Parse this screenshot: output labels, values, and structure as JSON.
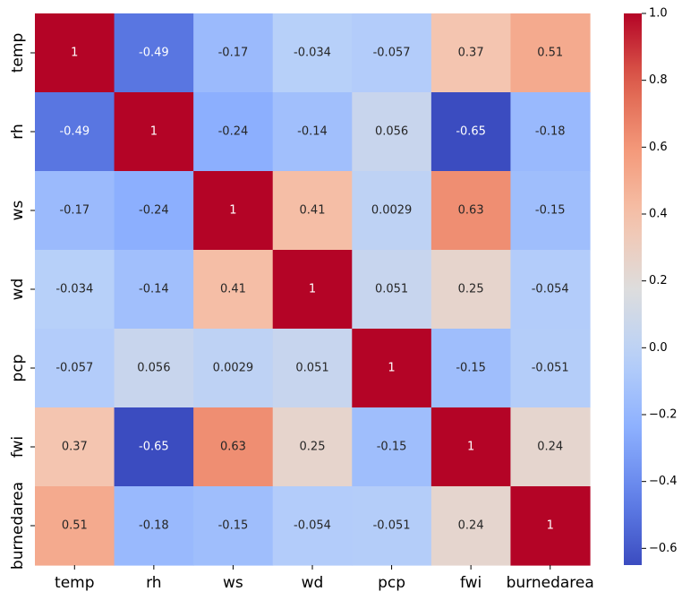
{
  "chart_data": {
    "type": "heatmap",
    "title": "",
    "xlabel": "",
    "ylabel": "",
    "variables": [
      "temp",
      "rh",
      "ws",
      "wd",
      "pcp",
      "fwi",
      "burnedarea"
    ],
    "matrix": [
      [
        1,
        -0.49,
        -0.17,
        -0.034,
        -0.057,
        0.37,
        0.51
      ],
      [
        -0.49,
        1,
        -0.24,
        -0.14,
        0.056,
        -0.65,
        -0.18
      ],
      [
        -0.17,
        -0.24,
        1,
        0.41,
        0.0029,
        0.63,
        -0.15
      ],
      [
        -0.034,
        -0.14,
        0.41,
        1,
        0.051,
        0.25,
        -0.054
      ],
      [
        -0.057,
        0.056,
        0.0029,
        0.051,
        1,
        -0.15,
        -0.051
      ],
      [
        0.37,
        -0.65,
        0.63,
        0.25,
        -0.15,
        1,
        0.24
      ],
      [
        0.51,
        -0.18,
        -0.15,
        -0.054,
        -0.051,
        0.24,
        1
      ]
    ],
    "colormap": "coolwarm",
    "colorbar": {
      "min": -0.65,
      "max": 1.0,
      "ticks": [
        1.0,
        0.8,
        0.6,
        0.4,
        0.2,
        0.0,
        -0.2,
        -0.4,
        -0.6
      ],
      "tick_labels": [
        "1.0",
        "0.8",
        "0.6",
        "0.4",
        "0.2",
        "0.0",
        "−0.2",
        "−0.4",
        "−0.6"
      ]
    }
  }
}
